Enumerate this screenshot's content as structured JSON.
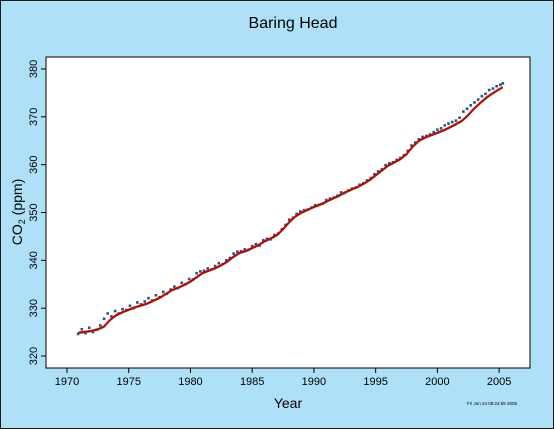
{
  "chart_data": {
    "type": "scatter",
    "title": "Baring Head",
    "xlabel": "Year",
    "ylabel_main": "CO",
    "ylabel_sub": "2",
    "ylabel_unit": " (ppm)",
    "xlim": [
      1968.3,
      2007.5
    ],
    "ylim": [
      317.5,
      382.5
    ],
    "xticks": [
      1970,
      1975,
      1980,
      1985,
      1990,
      1995,
      2000,
      2005
    ],
    "yticks": [
      320,
      330,
      340,
      350,
      360,
      370,
      380
    ],
    "grid": false,
    "legend": "none",
    "stamp": "Fri Jun 24 08:24:55 2005",
    "colors": {
      "background": "#aee0f7",
      "plot_area": "#ffffff",
      "points": "#1f5a8c",
      "fit_line": "#cc0000",
      "fit_line_secondary": "#2a8a2a"
    },
    "series": [
      {
        "style": "points",
        "x": [
          1970.9,
          1971.2,
          1971.5,
          1971.8,
          1972.1,
          1972.4,
          1972.7,
          1973.0,
          1973.3,
          1973.6,
          1973.9,
          1974.2,
          1974.5,
          1974.8,
          1975.1,
          1975.4,
          1975.7,
          1976.0,
          1976.3,
          1976.6,
          1976.9,
          1977.2,
          1977.5,
          1977.8,
          1978.1,
          1978.4,
          1978.7,
          1979.0,
          1979.3,
          1979.6,
          1979.9,
          1980.2,
          1980.5,
          1980.8,
          1981.1,
          1981.4,
          1981.7,
          1982.0,
          1982.3,
          1982.6,
          1982.9,
          1983.2,
          1983.5,
          1983.8,
          1984.1,
          1984.4,
          1984.7,
          1985.0,
          1985.3,
          1985.6,
          1985.9,
          1986.2,
          1986.5,
          1986.8,
          1987.1,
          1987.4,
          1987.7,
          1988.0,
          1988.3,
          1988.6,
          1988.9,
          1989.2,
          1989.5,
          1989.8,
          1990.1,
          1990.4,
          1990.7,
          1991.0,
          1991.3,
          1991.6,
          1991.9,
          1992.2,
          1992.5,
          1992.8,
          1993.1,
          1993.4,
          1993.7,
          1994.0,
          1994.3,
          1994.6,
          1994.9,
          1995.2,
          1995.5,
          1995.8,
          1996.1,
          1996.4,
          1996.7,
          1997.0,
          1997.3,
          1997.6,
          1997.9,
          1998.2,
          1998.5,
          1998.8,
          1999.1,
          1999.4,
          1999.7,
          2000.0,
          2000.3,
          2000.6,
          2000.9,
          2001.2,
          2001.5,
          2001.8,
          2002.1,
          2002.4,
          2002.7,
          2003.0,
          2003.3,
          2003.6,
          2003.9,
          2004.2,
          2004.5,
          2004.8,
          2005.1,
          2005.3
        ],
        "y": [
          324.6,
          325.6,
          324.8,
          325.9,
          325.0,
          325.5,
          326.4,
          327.8,
          328.9,
          328.3,
          329.4,
          328.9,
          329.8,
          329.6,
          330.5,
          330.0,
          331.2,
          330.8,
          331.4,
          332.1,
          331.6,
          332.7,
          332.3,
          333.4,
          333.0,
          333.9,
          334.5,
          334.2,
          335.3,
          335.0,
          336.1,
          336.0,
          337.3,
          337.7,
          337.8,
          338.3,
          338.1,
          338.8,
          339.4,
          339.2,
          340.0,
          340.5,
          341.4,
          341.8,
          341.9,
          342.3,
          342.2,
          343.0,
          343.4,
          343.1,
          344.2,
          344.5,
          344.4,
          345.3,
          345.6,
          346.5,
          347.4,
          348.5,
          348.9,
          349.7,
          350.2,
          350.5,
          350.6,
          351.0,
          351.5,
          351.6,
          351.8,
          352.6,
          352.9,
          353.1,
          353.5,
          354.2,
          354.1,
          354.6,
          355.0,
          355.2,
          355.8,
          356.1,
          356.7,
          357.2,
          358.0,
          358.6,
          359.0,
          359.9,
          360.3,
          360.5,
          361.0,
          361.4,
          362.0,
          362.9,
          364.0,
          364.6,
          365.3,
          365.8,
          366.0,
          366.3,
          366.8,
          367.3,
          367.6,
          368.2,
          368.6,
          368.9,
          369.2,
          369.8,
          371.1,
          371.7,
          372.4,
          373.0,
          373.6,
          374.3,
          374.8,
          375.6,
          375.9,
          376.4,
          376.7,
          377.0
        ]
      },
      {
        "style": "fit-line",
        "x": [
          1970.9,
          1971.5,
          1972.0,
          1972.5,
          1973.0,
          1973.5,
          1974.0,
          1974.5,
          1975.0,
          1975.5,
          1976.0,
          1976.5,
          1977.0,
          1977.5,
          1978.0,
          1978.5,
          1979.0,
          1979.5,
          1980.0,
          1980.5,
          1981.0,
          1981.5,
          1982.0,
          1982.5,
          1983.0,
          1983.5,
          1984.0,
          1984.5,
          1985.0,
          1985.5,
          1986.0,
          1986.5,
          1987.0,
          1987.5,
          1988.0,
          1988.5,
          1989.0,
          1989.5,
          1990.0,
          1990.5,
          1991.0,
          1991.5,
          1992.0,
          1992.5,
          1993.0,
          1993.5,
          1994.0,
          1994.5,
          1995.0,
          1995.5,
          1996.0,
          1996.5,
          1997.0,
          1997.5,
          1998.0,
          1998.5,
          1999.0,
          1999.5,
          2000.0,
          2000.5,
          2001.0,
          2001.5,
          2002.0,
          2002.5,
          2003.0,
          2003.5,
          2004.0,
          2004.5,
          2005.0,
          2005.3
        ],
        "y": [
          324.9,
          325.1,
          325.3,
          325.6,
          326.2,
          327.6,
          328.6,
          329.2,
          329.7,
          330.2,
          330.6,
          331.0,
          331.6,
          332.2,
          333.0,
          333.8,
          334.3,
          334.9,
          335.6,
          336.5,
          337.4,
          337.9,
          338.4,
          339.0,
          339.8,
          340.8,
          341.6,
          342.0,
          342.6,
          343.2,
          344.0,
          344.6,
          345.3,
          346.5,
          348.0,
          349.2,
          350.0,
          350.6,
          351.2,
          351.7,
          352.3,
          352.9,
          353.5,
          354.2,
          354.8,
          355.3,
          356.0,
          356.8,
          357.8,
          358.8,
          359.8,
          360.5,
          361.2,
          362.2,
          363.8,
          365.0,
          365.7,
          366.2,
          366.7,
          367.2,
          367.8,
          368.5,
          369.2,
          370.4,
          371.8,
          373.0,
          374.1,
          375.0,
          375.8,
          376.2
        ]
      }
    ]
  }
}
